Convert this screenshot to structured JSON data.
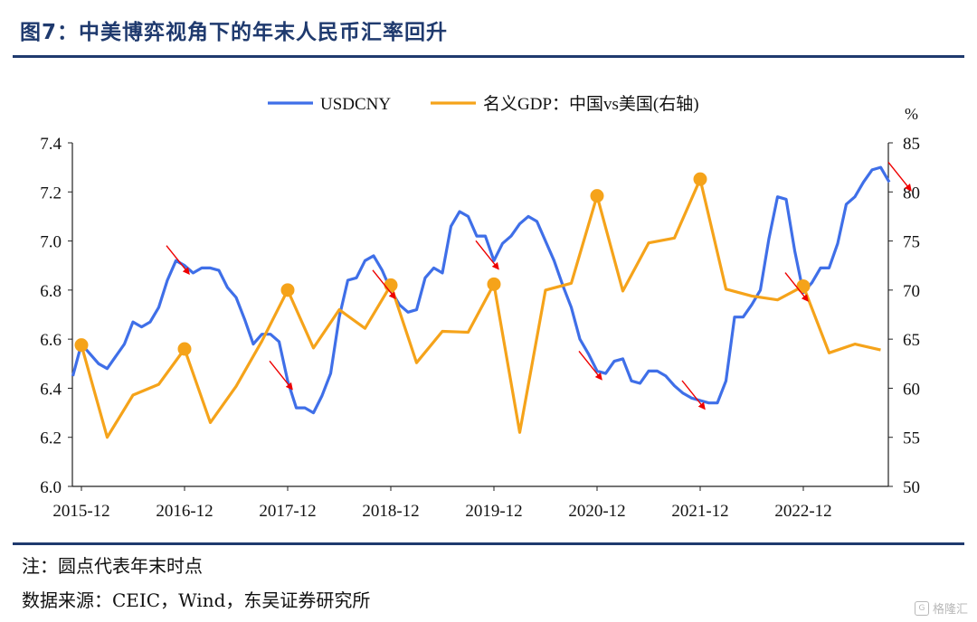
{
  "title": "图7：中美博弈视角下的年末人民币汇率回升",
  "note": "注：圆点代表年末时点",
  "source": "数据来源：CEIC，Wind，东吴证券研究所",
  "watermark": "格隆汇",
  "chart_data": {
    "type": "line",
    "x_ticks": [
      "2015-12",
      "2016-12",
      "2017-12",
      "2018-12",
      "2019-12",
      "2020-12",
      "2021-12",
      "2022-12"
    ],
    "y_left": {
      "ticks": [
        "6.0",
        "6.2",
        "6.4",
        "6.6",
        "6.8",
        "7.0",
        "7.2",
        "7.4"
      ],
      "range": [
        6.0,
        7.4
      ]
    },
    "y_right": {
      "ticks": [
        "50",
        "55",
        "60",
        "65",
        "70",
        "75",
        "80",
        "85"
      ],
      "range": [
        50,
        85
      ],
      "unit": "%"
    },
    "colors": {
      "usdcny": "#3f6fe8",
      "gdp": "#f5a31a",
      "arrow": "#ee0000"
    },
    "series": [
      {
        "name": "USDCNY",
        "axis": "left",
        "start": "2015-11",
        "step": "month",
        "values": [
          6.45,
          6.58,
          6.54,
          6.5,
          6.48,
          6.53,
          6.58,
          6.67,
          6.65,
          6.67,
          6.73,
          6.84,
          6.92,
          6.9,
          6.87,
          6.89,
          6.89,
          6.88,
          6.81,
          6.77,
          6.68,
          6.58,
          6.62,
          6.62,
          6.59,
          6.43,
          6.32,
          6.32,
          6.3,
          6.37,
          6.46,
          6.69,
          6.84,
          6.85,
          6.92,
          6.94,
          6.88,
          6.8,
          6.74,
          6.71,
          6.72,
          6.85,
          6.89,
          6.87,
          7.06,
          7.12,
          7.1,
          7.02,
          7.02,
          6.92,
          6.99,
          7.02,
          7.07,
          7.1,
          7.08,
          7.0,
          6.92,
          6.82,
          6.73,
          6.6,
          6.54,
          6.47,
          6.46,
          6.51,
          6.52,
          6.43,
          6.42,
          6.47,
          6.47,
          6.45,
          6.41,
          6.38,
          6.36,
          6.35,
          6.34,
          6.34,
          6.43,
          6.69,
          6.69,
          6.74,
          6.8,
          7.01,
          7.18,
          7.17,
          6.96,
          6.79,
          6.83,
          6.89,
          6.89,
          6.99,
          7.15,
          7.18,
          7.24,
          7.29,
          7.3,
          7.24
        ]
      },
      {
        "name": "名义GDP：中国vs美国(右轴)",
        "axis": "right",
        "points": [
          {
            "x": "2015-12",
            "y": 64.4
          },
          {
            "x": "2016-03",
            "y": 55.0
          },
          {
            "x": "2016-06",
            "y": 59.3
          },
          {
            "x": "2016-09",
            "y": 60.4
          },
          {
            "x": "2016-12",
            "y": 64.0
          },
          {
            "x": "2017-03",
            "y": 56.5
          },
          {
            "x": "2017-06",
            "y": 60.2
          },
          {
            "x": "2017-09",
            "y": 64.8
          },
          {
            "x": "2017-12",
            "y": 70.0
          },
          {
            "x": "2018-03",
            "y": 64.1
          },
          {
            "x": "2018-06",
            "y": 68.0
          },
          {
            "x": "2018-09",
            "y": 66.1
          },
          {
            "x": "2018-12",
            "y": 70.5
          },
          {
            "x": "2019-03",
            "y": 62.6
          },
          {
            "x": "2019-06",
            "y": 65.8
          },
          {
            "x": "2019-09",
            "y": 65.7
          },
          {
            "x": "2019-12",
            "y": 70.6
          },
          {
            "x": "2020-03",
            "y": 55.5
          },
          {
            "x": "2020-06",
            "y": 70.0
          },
          {
            "x": "2020-09",
            "y": 70.7
          },
          {
            "x": "2020-12",
            "y": 79.6
          },
          {
            "x": "2021-03",
            "y": 69.9
          },
          {
            "x": "2021-06",
            "y": 74.8
          },
          {
            "x": "2021-09",
            "y": 75.3
          },
          {
            "x": "2021-12",
            "y": 81.3
          },
          {
            "x": "2022-03",
            "y": 70.1
          },
          {
            "x": "2022-06",
            "y": 69.4
          },
          {
            "x": "2022-09",
            "y": 69.0
          },
          {
            "x": "2022-12",
            "y": 70.4
          },
          {
            "x": "2023-03",
            "y": 63.6
          },
          {
            "x": "2023-06",
            "y": 64.5
          },
          {
            "x": "2023-09",
            "y": 63.9
          }
        ],
        "markers": [
          "2015-12",
          "2016-12",
          "2017-12",
          "2018-12",
          "2019-12",
          "2020-12",
          "2021-12",
          "2022-12"
        ]
      }
    ],
    "legend": {
      "placement": "top-center",
      "entries": [
        "USDCNY",
        "名义GDP：中国vs美国(右轴)"
      ]
    },
    "arrows": [
      {
        "x": "2016-12",
        "direction": "down"
      },
      {
        "x": "2017-12",
        "direction": "down"
      },
      {
        "x": "2018-12",
        "direction": "down"
      },
      {
        "x": "2019-12",
        "direction": "down"
      },
      {
        "x": "2020-12",
        "direction": "down"
      },
      {
        "x": "2021-12",
        "direction": "down"
      },
      {
        "x": "2022-12",
        "direction": "down"
      },
      {
        "x": "2023-12",
        "direction": "down"
      }
    ],
    "grid": false
  }
}
